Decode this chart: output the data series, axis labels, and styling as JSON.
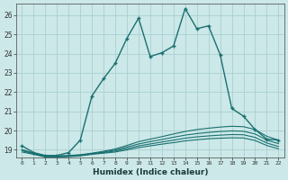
{
  "xlabel": "Humidex (Indice chaleur)",
  "bg_color": "#cce8e8",
  "grid_color": "#aacfcf",
  "line_color": "#1a7070",
  "xlim": [
    -0.5,
    22.5
  ],
  "ylim": [
    18.6,
    26.6
  ],
  "yticks": [
    19,
    20,
    21,
    22,
    23,
    24,
    25,
    26
  ],
  "xticks": [
    0,
    1,
    2,
    3,
    4,
    5,
    6,
    7,
    8,
    9,
    10,
    11,
    12,
    13,
    14,
    15,
    16,
    17,
    18,
    19,
    20,
    21,
    22
  ],
  "lines": [
    {
      "x": [
        0,
        1,
        2,
        3,
        4,
        5,
        6,
        7,
        8,
        9,
        10,
        11,
        12,
        13,
        14,
        15,
        16,
        17,
        18,
        19,
        20,
        21,
        22
      ],
      "y": [
        19.2,
        18.85,
        18.7,
        18.7,
        18.85,
        19.5,
        21.8,
        22.7,
        23.5,
        24.8,
        25.85,
        23.85,
        24.05,
        24.4,
        26.35,
        25.3,
        25.45,
        23.95,
        21.15,
        20.75,
        20.05,
        19.55,
        19.5
      ],
      "marker": true
    },
    {
      "x": [
        0,
        1,
        2,
        3,
        4,
        5,
        6,
        7,
        8,
        9,
        10,
        11,
        12,
        13,
        14,
        15,
        16,
        17,
        18,
        19,
        20,
        21,
        22
      ],
      "y": [
        19.0,
        18.82,
        18.68,
        18.68,
        18.7,
        18.74,
        18.82,
        18.92,
        19.04,
        19.22,
        19.42,
        19.55,
        19.68,
        19.82,
        19.95,
        20.05,
        20.12,
        20.18,
        20.22,
        20.2,
        20.05,
        19.7,
        19.5
      ],
      "marker": false
    },
    {
      "x": [
        0,
        1,
        2,
        3,
        4,
        5,
        6,
        7,
        8,
        9,
        10,
        11,
        12,
        13,
        14,
        15,
        16,
        17,
        18,
        19,
        20,
        21,
        22
      ],
      "y": [
        19.0,
        18.8,
        18.66,
        18.66,
        18.68,
        18.72,
        18.8,
        18.88,
        18.98,
        19.14,
        19.3,
        19.42,
        19.53,
        19.65,
        19.76,
        19.84,
        19.9,
        19.95,
        19.98,
        19.96,
        19.82,
        19.5,
        19.32
      ],
      "marker": false
    },
    {
      "x": [
        0,
        1,
        2,
        3,
        4,
        5,
        6,
        7,
        8,
        9,
        10,
        11,
        12,
        13,
        14,
        15,
        16,
        17,
        18,
        19,
        20,
        21,
        22
      ],
      "y": [
        18.95,
        18.78,
        18.64,
        18.64,
        18.66,
        18.7,
        18.78,
        18.85,
        18.93,
        19.06,
        19.2,
        19.3,
        19.4,
        19.5,
        19.6,
        19.67,
        19.72,
        19.76,
        19.79,
        19.78,
        19.64,
        19.35,
        19.17
      ],
      "marker": false
    },
    {
      "x": [
        0,
        1,
        2,
        3,
        4,
        5,
        6,
        7,
        8,
        9,
        10,
        11,
        12,
        13,
        14,
        15,
        16,
        17,
        18,
        19,
        20,
        21,
        22
      ],
      "y": [
        18.88,
        18.76,
        18.62,
        18.62,
        18.64,
        18.68,
        18.76,
        18.82,
        18.88,
        18.99,
        19.11,
        19.2,
        19.29,
        19.37,
        19.46,
        19.52,
        19.57,
        19.6,
        19.62,
        19.61,
        19.48,
        19.22,
        19.05
      ],
      "marker": false
    }
  ]
}
